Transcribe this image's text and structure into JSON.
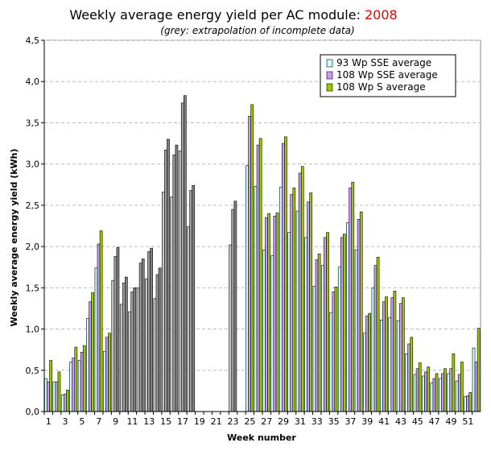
{
  "chart_data": {
    "type": "bar",
    "title": "Weekly average energy yield per AC module:",
    "title_highlight": "2008",
    "title_highlight_color": "#e00000",
    "subtitle": "(grey: extrapolation of incomplete data)",
    "x_label": "Week number",
    "y_label": "Weekly average energy yield (kWh)",
    "categories": [
      1,
      null,
      3,
      null,
      5,
      null,
      7,
      null,
      9,
      null,
      11,
      null,
      13,
      null,
      15,
      null,
      17,
      null,
      19,
      null,
      21,
      null,
      23,
      null,
      25,
      null,
      27,
      null,
      29,
      null,
      31,
      null,
      33,
      null,
      35,
      null,
      37,
      null,
      39,
      null,
      41,
      null,
      43,
      null,
      45,
      null,
      47,
      null,
      49,
      null,
      51,
      null
    ],
    "extrapolated": [
      8,
      9,
      10,
      11,
      12,
      13,
      14,
      15,
      16,
      17,
      22
    ],
    "series": [
      {
        "name": "93 Wp SSE average",
        "color": "#ccffff",
        "grey_color": "#c8c8c8",
        "values": [
          0.4,
          0.36,
          0.2,
          0.6,
          0.62,
          1.13,
          1.74,
          0.73,
          1.59,
          1.3,
          1.21,
          1.5,
          1.61,
          1.37,
          2.66,
          2.6,
          3.16,
          2.24,
          null,
          null,
          null,
          null,
          2.02,
          null,
          2.98,
          2.73,
          1.96,
          1.89,
          2.72,
          2.17,
          2.43,
          2.11,
          1.52,
          1.77,
          1.2,
          1.75,
          2.29,
          1.96,
          0.95,
          1.5,
          1.11,
          1.14,
          1.1,
          0.7,
          0.45,
          0.43,
          0.35,
          0.4,
          0.46,
          0.37,
          0.18,
          0.77
        ]
      },
      {
        "name": "108 Wp SSE average",
        "color": "#cc99ff",
        "grey_color": "#a0a0a0",
        "values": [
          0.36,
          0.36,
          0.21,
          0.65,
          0.72,
          1.33,
          2.03,
          0.9,
          1.88,
          1.56,
          1.45,
          1.8,
          1.94,
          1.66,
          3.17,
          3.11,
          3.74,
          2.68,
          null,
          null,
          null,
          null,
          2.45,
          null,
          3.58,
          3.23,
          2.35,
          2.37,
          3.25,
          2.63,
          2.89,
          2.54,
          1.84,
          2.11,
          1.45,
          2.11,
          2.71,
          2.33,
          1.16,
          1.77,
          1.33,
          1.38,
          1.31,
          0.82,
          0.52,
          0.48,
          0.4,
          0.46,
          0.52,
          0.45,
          0.19,
          0.6
        ]
      },
      {
        "name": "108 Wp S average",
        "color": "#99cc00",
        "grey_color": "#808080",
        "values": [
          0.62,
          0.48,
          0.26,
          0.78,
          0.8,
          1.44,
          2.19,
          0.95,
          1.99,
          1.63,
          1.5,
          1.85,
          1.98,
          1.74,
          3.3,
          3.23,
          3.83,
          2.74,
          null,
          null,
          null,
          null,
          2.55,
          null,
          3.72,
          3.31,
          2.4,
          2.41,
          3.33,
          2.71,
          2.97,
          2.65,
          1.91,
          2.17,
          1.51,
          2.15,
          2.78,
          2.42,
          1.19,
          1.87,
          1.39,
          1.46,
          1.38,
          0.9,
          0.59,
          0.54,
          0.46,
          0.52,
          0.7,
          0.6,
          0.23,
          1.01
        ]
      }
    ],
    "ylim": [
      0,
      4.5
    ],
    "yticks": [
      {
        "value": 0,
        "label": "0,0"
      },
      {
        "value": 0.5,
        "label": "0,5"
      },
      {
        "value": 1,
        "label": "1,0"
      },
      {
        "value": 1.5,
        "label": "1,5"
      },
      {
        "value": 2,
        "label": "2,0"
      },
      {
        "value": 2.5,
        "label": "2,5"
      },
      {
        "value": 3,
        "label": "3,0"
      },
      {
        "value": 3.5,
        "label": "3,5"
      },
      {
        "value": 4,
        "label": "4,0"
      },
      {
        "value": 4.5,
        "label": "4,5"
      }
    ],
    "grid": true,
    "legend": "top-right"
  }
}
